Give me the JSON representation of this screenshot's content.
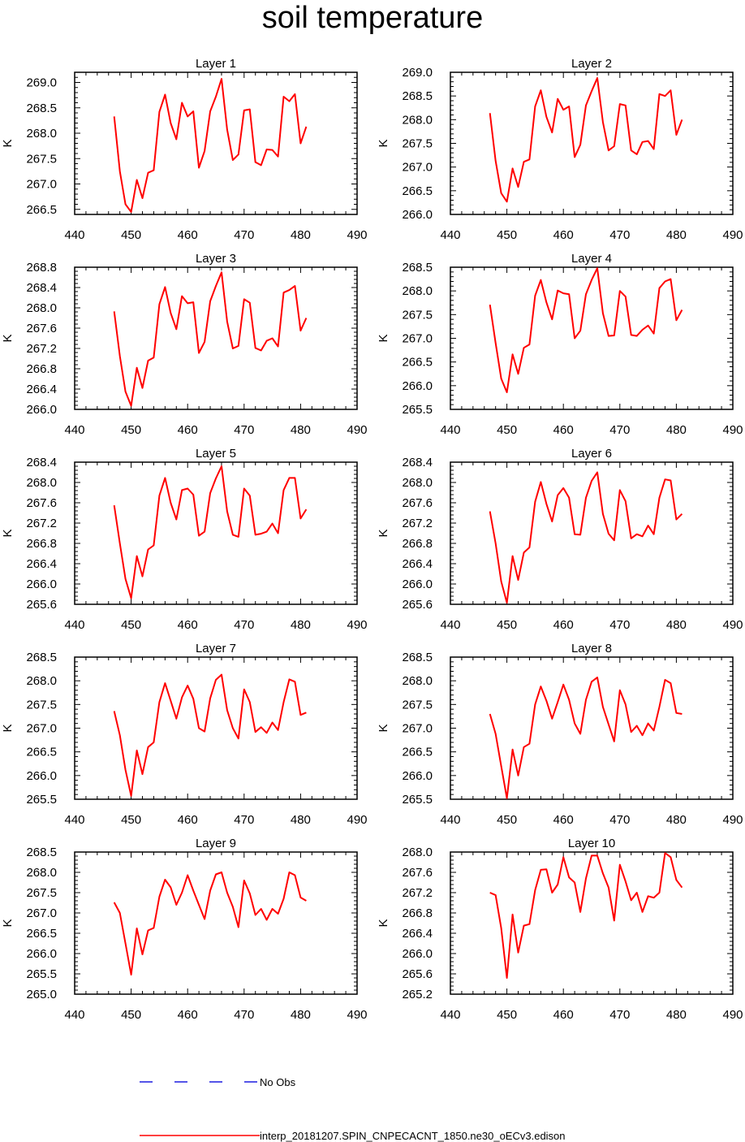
{
  "title": "soil temperature",
  "chart_data": [
    {
      "type": "line",
      "title": "Layer 1",
      "ylabel": "K",
      "xlim": [
        440,
        490
      ],
      "xticks": [
        440,
        450,
        460,
        470,
        480,
        490
      ],
      "ylim": [
        266.4,
        269.2
      ],
      "yticks": [
        266.5,
        267.0,
        267.5,
        268.0,
        268.5,
        269.0
      ],
      "ytick_labels": [
        "266.5",
        "267.0",
        "267.5",
        "268.0",
        "268.5",
        "269.0"
      ],
      "x": [
        447,
        448,
        449,
        450,
        451,
        452,
        453,
        454,
        455,
        456,
        457,
        458,
        459,
        460,
        461,
        462,
        463,
        464,
        465,
        466,
        467,
        468,
        469,
        470,
        471,
        472,
        473,
        474,
        475,
        476,
        477,
        478,
        479,
        480,
        481
      ],
      "series": [
        {
          "name": "interp_20181207.SPIN_CNPECACNT_1850.ne30_oECv3.edison",
          "values": [
            268.33,
            267.25,
            266.6,
            266.45,
            267.08,
            266.72,
            267.22,
            267.27,
            268.42,
            268.76,
            268.2,
            267.88,
            268.6,
            268.33,
            268.43,
            267.32,
            267.65,
            268.43,
            268.72,
            269.07,
            268.07,
            267.47,
            267.58,
            268.45,
            268.47,
            267.43,
            267.37,
            267.68,
            267.67,
            267.54,
            268.72,
            268.63,
            268.77,
            267.8,
            268.13
          ]
        }
      ]
    },
    {
      "type": "line",
      "title": "Layer 2",
      "ylabel": "K",
      "xlim": [
        440,
        490
      ],
      "xticks": [
        440,
        450,
        460,
        470,
        480,
        490
      ],
      "ylim": [
        266.0,
        269.0
      ],
      "yticks": [
        266.0,
        266.5,
        267.0,
        267.5,
        268.0,
        268.5,
        269.0
      ],
      "ytick_labels": [
        "266.0",
        "266.5",
        "267.0",
        "267.5",
        "268.0",
        "268.5",
        "269.0"
      ],
      "x": [
        447,
        448,
        449,
        450,
        451,
        452,
        453,
        454,
        455,
        456,
        457,
        458,
        459,
        460,
        461,
        462,
        463,
        464,
        465,
        466,
        467,
        468,
        469,
        470,
        471,
        472,
        473,
        474,
        475,
        476,
        477,
        478,
        479,
        480,
        481
      ],
      "series": [
        {
          "name": "interp_20181207.SPIN_CNPECACNT_1850.ne30_oECv3.edison",
          "values": [
            268.14,
            267.13,
            266.45,
            266.27,
            266.97,
            266.58,
            267.11,
            267.16,
            268.28,
            268.62,
            268.06,
            267.73,
            268.44,
            268.21,
            268.28,
            267.21,
            267.47,
            268.3,
            268.6,
            268.88,
            267.95,
            267.35,
            267.44,
            268.33,
            268.3,
            267.35,
            267.27,
            267.53,
            267.55,
            267.38,
            268.54,
            268.5,
            268.62,
            267.68,
            268.0
          ]
        }
      ]
    },
    {
      "type": "line",
      "title": "Layer 3",
      "ylabel": "K",
      "xlim": [
        440,
        490
      ],
      "xticks": [
        440,
        450,
        460,
        470,
        480,
        490
      ],
      "ylim": [
        266.0,
        268.8
      ],
      "yticks": [
        266.0,
        266.4,
        266.8,
        267.2,
        267.6,
        268.0,
        268.4,
        268.8
      ],
      "ytick_labels": [
        "266.0",
        "266.4",
        "266.8",
        "267.2",
        "267.6",
        "268.0",
        "268.4",
        "268.8"
      ],
      "x": [
        447,
        448,
        449,
        450,
        451,
        452,
        453,
        454,
        455,
        456,
        457,
        458,
        459,
        460,
        461,
        462,
        463,
        464,
        465,
        466,
        467,
        468,
        469,
        470,
        471,
        472,
        473,
        474,
        475,
        476,
        477,
        478,
        479,
        480,
        481
      ],
      "series": [
        {
          "name": "interp_20181207.SPIN_CNPECACNT_1850.ne30_oECv3.edison",
          "values": [
            267.93,
            267.05,
            266.35,
            266.07,
            266.82,
            266.42,
            266.96,
            267.02,
            268.07,
            268.41,
            267.9,
            267.58,
            268.23,
            268.09,
            268.11,
            267.11,
            267.33,
            268.13,
            268.43,
            268.7,
            267.73,
            267.2,
            267.25,
            268.17,
            268.1,
            267.21,
            267.16,
            267.35,
            267.4,
            267.24,
            268.3,
            268.35,
            268.43,
            267.55,
            267.8
          ]
        }
      ]
    },
    {
      "type": "line",
      "title": "Layer 4",
      "ylabel": "K",
      "xlim": [
        440,
        490
      ],
      "xticks": [
        440,
        450,
        460,
        470,
        480,
        490
      ],
      "ylim": [
        265.5,
        268.5
      ],
      "yticks": [
        265.5,
        266.0,
        266.5,
        267.0,
        267.5,
        268.0,
        268.5
      ],
      "ytick_labels": [
        "265.5",
        "266.0",
        "266.5",
        "267.0",
        "267.5",
        "268.0",
        "268.5"
      ],
      "x": [
        447,
        448,
        449,
        450,
        451,
        452,
        453,
        454,
        455,
        456,
        457,
        458,
        459,
        460,
        461,
        462,
        463,
        464,
        465,
        466,
        467,
        468,
        469,
        470,
        471,
        472,
        473,
        474,
        475,
        476,
        477,
        478,
        479,
        480,
        481
      ],
      "series": [
        {
          "name": "interp_20181207.SPIN_CNPECACNT_1850.ne30_oECv3.edison",
          "values": [
            267.71,
            266.9,
            266.15,
            265.86,
            266.66,
            266.25,
            266.8,
            266.87,
            267.9,
            268.23,
            267.76,
            267.4,
            268.01,
            267.95,
            267.93,
            267.0,
            267.16,
            267.93,
            268.23,
            268.48,
            267.53,
            267.05,
            267.06,
            268.0,
            267.88,
            267.07,
            267.05,
            267.18,
            267.27,
            267.1,
            268.06,
            268.2,
            268.25,
            267.38,
            267.6
          ]
        }
      ]
    },
    {
      "type": "line",
      "title": "Layer 5",
      "ylabel": "K",
      "xlim": [
        440,
        490
      ],
      "xticks": [
        440,
        450,
        460,
        470,
        480,
        490
      ],
      "ylim": [
        265.6,
        268.4
      ],
      "yticks": [
        265.6,
        266.0,
        266.4,
        266.8,
        267.2,
        267.6,
        268.0,
        268.4
      ],
      "ytick_labels": [
        "265.6",
        "266.0",
        "266.4",
        "266.8",
        "267.2",
        "267.6",
        "268.0",
        "268.4"
      ],
      "x": [
        447,
        448,
        449,
        450,
        451,
        452,
        453,
        454,
        455,
        456,
        457,
        458,
        459,
        460,
        461,
        462,
        463,
        464,
        465,
        466,
        467,
        468,
        469,
        470,
        471,
        472,
        473,
        474,
        475,
        476,
        477,
        478,
        479,
        480,
        481
      ],
      "series": [
        {
          "name": "interp_20181207.SPIN_CNPECACNT_1850.ne30_oECv3.edison",
          "values": [
            267.55,
            266.8,
            266.1,
            265.72,
            266.55,
            266.15,
            266.68,
            266.76,
            267.74,
            268.09,
            267.6,
            267.27,
            267.85,
            267.88,
            267.76,
            266.95,
            267.03,
            267.79,
            268.08,
            268.32,
            267.43,
            266.97,
            266.93,
            267.88,
            267.74,
            266.97,
            266.99,
            267.03,
            267.19,
            267.0,
            267.85,
            268.09,
            268.09,
            267.29,
            267.47
          ]
        }
      ]
    },
    {
      "type": "line",
      "title": "Layer 6",
      "ylabel": "K",
      "xlim": [
        440,
        490
      ],
      "xticks": [
        440,
        450,
        460,
        470,
        480,
        490
      ],
      "ylim": [
        265.6,
        268.4
      ],
      "yticks": [
        265.6,
        266.0,
        266.4,
        266.8,
        267.2,
        267.6,
        268.0,
        268.4
      ],
      "ytick_labels": [
        "265.6",
        "266.0",
        "266.4",
        "266.8",
        "267.2",
        "267.6",
        "268.0",
        "268.4"
      ],
      "x": [
        447,
        448,
        449,
        450,
        451,
        452,
        453,
        454,
        455,
        456,
        457,
        458,
        459,
        460,
        461,
        462,
        463,
        464,
        465,
        466,
        467,
        468,
        469,
        470,
        471,
        472,
        473,
        474,
        475,
        476,
        477,
        478,
        479,
        480,
        481
      ],
      "series": [
        {
          "name": "interp_20181207.SPIN_CNPECACNT_1850.ne30_oECv3.edison",
          "values": [
            267.43,
            266.8,
            266.05,
            265.63,
            266.55,
            266.08,
            266.62,
            266.72,
            267.62,
            268.01,
            267.58,
            267.23,
            267.75,
            267.89,
            267.7,
            266.98,
            266.97,
            267.7,
            268.03,
            268.2,
            267.38,
            266.99,
            266.86,
            267.85,
            267.63,
            266.9,
            266.98,
            266.94,
            267.15,
            266.98,
            267.7,
            268.06,
            268.04,
            267.27,
            267.38
          ]
        }
      ]
    },
    {
      "type": "line",
      "title": "Layer 7",
      "ylabel": "K",
      "xlim": [
        440,
        490
      ],
      "xticks": [
        440,
        450,
        460,
        470,
        480,
        490
      ],
      "ylim": [
        265.5,
        268.5
      ],
      "yticks": [
        265.5,
        266.0,
        266.5,
        267.0,
        267.5,
        268.0,
        268.5
      ],
      "ytick_labels": [
        "265.5",
        "266.0",
        "266.5",
        "267.0",
        "267.5",
        "268.0",
        "268.5"
      ],
      "x": [
        447,
        448,
        449,
        450,
        451,
        452,
        453,
        454,
        455,
        456,
        457,
        458,
        459,
        460,
        461,
        462,
        463,
        464,
        465,
        466,
        467,
        468,
        469,
        470,
        471,
        472,
        473,
        474,
        475,
        476,
        477,
        478,
        479,
        480,
        481
      ],
      "series": [
        {
          "name": "interp_20181207.SPIN_CNPECACNT_1850.ne30_oECv3.edison",
          "values": [
            267.36,
            266.85,
            266.12,
            265.57,
            266.53,
            266.03,
            266.6,
            266.7,
            267.55,
            267.95,
            267.58,
            267.2,
            267.65,
            267.9,
            267.62,
            267.0,
            266.93,
            267.63,
            268.02,
            268.13,
            267.38,
            267.0,
            266.78,
            267.82,
            267.55,
            266.92,
            267.02,
            266.9,
            267.12,
            266.96,
            267.55,
            268.03,
            267.98,
            267.28,
            267.33
          ]
        }
      ]
    },
    {
      "type": "line",
      "title": "Layer 8",
      "ylabel": "K",
      "xlim": [
        440,
        490
      ],
      "xticks": [
        440,
        450,
        460,
        470,
        480,
        490
      ],
      "ylim": [
        265.5,
        268.5
      ],
      "yticks": [
        265.5,
        266.0,
        266.5,
        267.0,
        267.5,
        268.0,
        268.5
      ],
      "ytick_labels": [
        "265.5",
        "266.0",
        "266.5",
        "267.0",
        "267.5",
        "268.0",
        "268.5"
      ],
      "x": [
        447,
        448,
        449,
        450,
        451,
        452,
        453,
        454,
        455,
        456,
        457,
        458,
        459,
        460,
        461,
        462,
        463,
        464,
        465,
        466,
        467,
        468,
        469,
        470,
        471,
        472,
        473,
        474,
        475,
        476,
        477,
        478,
        479,
        480,
        481
      ],
      "series": [
        {
          "name": "interp_20181207.SPIN_CNPECACNT_1850.ne30_oECv3.edison",
          "values": [
            267.3,
            266.88,
            266.2,
            265.52,
            266.55,
            266.0,
            266.6,
            266.67,
            267.5,
            267.88,
            267.58,
            267.2,
            267.55,
            267.92,
            267.6,
            267.1,
            266.88,
            267.6,
            267.98,
            268.07,
            267.45,
            267.08,
            266.72,
            267.8,
            267.5,
            266.92,
            267.05,
            266.85,
            267.1,
            266.95,
            267.45,
            268.02,
            267.95,
            267.32,
            267.3
          ]
        }
      ]
    },
    {
      "type": "line",
      "title": "Layer 9",
      "ylabel": "K",
      "xlim": [
        440,
        490
      ],
      "xticks": [
        440,
        450,
        460,
        470,
        480,
        490
      ],
      "ylim": [
        265.0,
        268.5
      ],
      "yticks": [
        265.0,
        265.5,
        266.0,
        266.5,
        267.0,
        267.5,
        268.0,
        268.5
      ],
      "ytick_labels": [
        "265.0",
        "265.5",
        "266.0",
        "266.5",
        "267.0",
        "267.5",
        "268.0",
        "268.5"
      ],
      "x": [
        447,
        448,
        449,
        450,
        451,
        452,
        453,
        454,
        455,
        456,
        457,
        458,
        459,
        460,
        461,
        462,
        463,
        464,
        465,
        466,
        467,
        468,
        469,
        470,
        471,
        472,
        473,
        474,
        475,
        476,
        477,
        478,
        479,
        480,
        481
      ],
      "series": [
        {
          "name": "interp_20181207.SPIN_CNPECACNT_1850.ne30_oECv3.edison",
          "values": [
            267.26,
            267.0,
            266.25,
            265.48,
            266.62,
            265.98,
            266.57,
            266.63,
            267.4,
            267.82,
            267.63,
            267.2,
            267.5,
            267.93,
            267.55,
            267.2,
            266.85,
            267.55,
            267.95,
            268.0,
            267.5,
            267.15,
            266.65,
            267.8,
            267.48,
            266.95,
            267.1,
            266.83,
            267.1,
            266.98,
            267.35,
            268.0,
            267.93,
            267.38,
            267.3
          ]
        }
      ]
    },
    {
      "type": "line",
      "title": "Layer 10",
      "ylabel": "K",
      "xlim": [
        440,
        490
      ],
      "xticks": [
        440,
        450,
        460,
        470,
        480,
        490
      ],
      "ylim": [
        265.2,
        268.0
      ],
      "yticks": [
        265.2,
        265.6,
        266.0,
        266.4,
        266.8,
        267.2,
        267.6,
        268.0
      ],
      "ytick_labels": [
        "265.2",
        "265.6",
        "266.0",
        "266.4",
        "266.8",
        "267.2",
        "267.6",
        "268.0"
      ],
      "x": [
        447,
        448,
        449,
        450,
        451,
        452,
        453,
        454,
        455,
        456,
        457,
        458,
        459,
        460,
        461,
        462,
        463,
        464,
        465,
        466,
        467,
        468,
        469,
        470,
        471,
        472,
        473,
        474,
        475,
        476,
        477,
        478,
        479,
        480,
        481
      ],
      "series": [
        {
          "name": "interp_20181207.SPIN_CNPECACNT_1850.ne30_oECv3.edison",
          "values": [
            267.2,
            267.15,
            266.5,
            265.52,
            266.77,
            266.02,
            266.55,
            266.58,
            267.25,
            267.65,
            267.66,
            267.2,
            267.36,
            267.9,
            267.5,
            267.4,
            266.82,
            267.48,
            267.93,
            267.93,
            267.58,
            267.3,
            266.65,
            267.75,
            267.42,
            267.05,
            267.2,
            266.82,
            267.13,
            267.1,
            267.2,
            267.98,
            267.9,
            267.45,
            267.3
          ]
        }
      ]
    }
  ],
  "legend": {
    "obs_label": "No Obs",
    "model_label": "interp_20181207.SPIN_CNPECACNT_1850.ne30_oECv3.edison",
    "obs_color": "#1c1ce0",
    "model_color": "#ff0000"
  }
}
